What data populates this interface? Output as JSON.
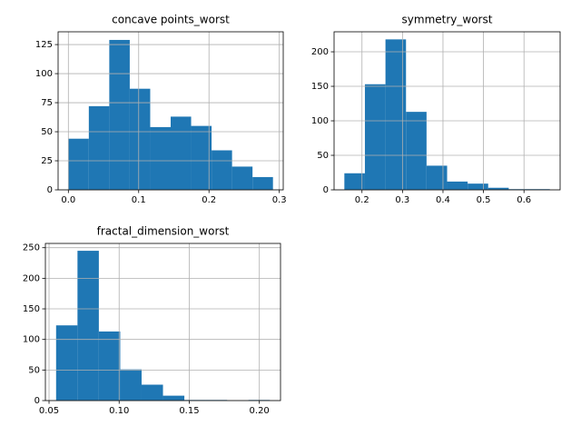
{
  "chart_data": [
    {
      "type": "histogram",
      "title": "concave points_worst",
      "bins": [
        0,
        0.0291,
        0.0582,
        0.0873,
        0.1164,
        0.1455,
        0.1746,
        0.2037,
        0.2328,
        0.2619,
        0.291
      ],
      "counts": [
        44,
        72,
        129,
        87,
        54,
        63,
        55,
        34,
        20,
        11
      ],
      "color": "#1f77b4",
      "grid": true,
      "xlim": [
        -0.0146,
        0.3056
      ],
      "ylim": [
        0,
        136
      ],
      "xticks": [
        {
          "value": 0,
          "label": "0.0"
        },
        0.1,
        0.2,
        0.3
      ],
      "yticks": [
        0,
        25,
        50,
        75,
        100,
        125
      ]
    },
    {
      "type": "histogram",
      "title": "symmetry_worst",
      "bins": [
        0.1565,
        0.2072,
        0.258,
        0.3087,
        0.3594,
        0.4102,
        0.4609,
        0.5116,
        0.5623,
        0.6131,
        0.6638
      ],
      "counts": [
        24,
        153,
        218,
        113,
        35,
        12,
        9,
        3,
        1,
        1
      ],
      "color": "#1f77b4",
      "grid": true,
      "xlim": [
        0.1311,
        0.6892
      ],
      "ylim": [
        0,
        229
      ],
      "xticks": [
        0.2,
        0.3,
        0.4,
        0.5,
        0.6
      ],
      "yticks": [
        0,
        50,
        100,
        150,
        200
      ]
    },
    {
      "type": "histogram",
      "title": "fractal_dimension_worst",
      "bins": [
        0.05504,
        0.07029,
        0.08553,
        0.10078,
        0.11602,
        0.13127,
        0.14652,
        0.16176,
        0.17701,
        0.19225,
        0.2075
      ],
      "counts": [
        123,
        245,
        113,
        51,
        26,
        8,
        1,
        1,
        0,
        1
      ],
      "color": "#1f77b4",
      "grid": true,
      "xlim": [
        0.0474,
        0.2151
      ],
      "ylim": [
        0,
        257
      ],
      "xticks": [
        0.05,
        {
          "value": 0.1,
          "label": "0.10"
        },
        0.15,
        {
          "value": 0.2,
          "label": "0.20"
        }
      ],
      "yticks": [
        0,
        50,
        100,
        150,
        200,
        250
      ]
    }
  ]
}
